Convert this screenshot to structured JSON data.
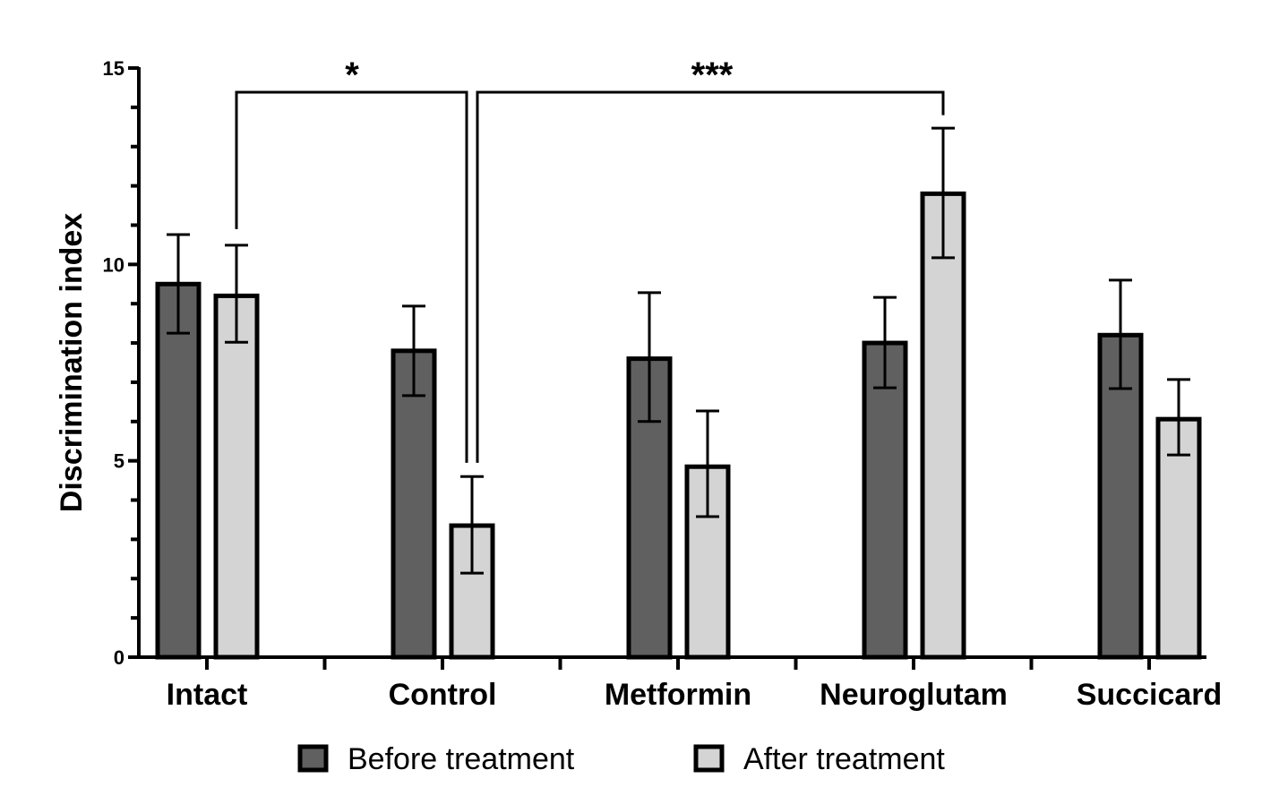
{
  "chart_data": {
    "type": "bar",
    "title": "",
    "xlabel": "",
    "ylabel": "Discrimination index",
    "ylim": [
      0,
      15
    ],
    "yticks": [
      0,
      5,
      10,
      15
    ],
    "yminor_step": 1,
    "grid": false,
    "categories": [
      "Intact",
      "Control",
      "Metformin",
      "Neuroglutam",
      "Succicard"
    ],
    "series": [
      {
        "name": "Before treatment",
        "color": "#606060",
        "values": [
          9.5,
          7.8,
          7.6,
          8.0,
          8.2
        ],
        "error_low": [
          8.25,
          6.66,
          6.0,
          6.86,
          6.84
        ],
        "error_high": [
          10.76,
          8.94,
          9.28,
          9.16,
          9.6
        ]
      },
      {
        "name": "After treatment",
        "color": "#d4d4d4",
        "values": [
          9.2,
          3.35,
          4.85,
          11.8,
          6.06
        ],
        "error_low": [
          8.02,
          2.14,
          3.58,
          10.17,
          5.15
        ],
        "error_high": [
          10.49,
          4.6,
          6.27,
          13.47,
          7.07
        ]
      }
    ],
    "significance": [
      {
        "from": {
          "category": "Intact",
          "series": "After treatment"
        },
        "to": {
          "category": "Control",
          "series": "After treatment"
        },
        "label": "*"
      },
      {
        "from": {
          "category": "Control",
          "series": "After treatment"
        },
        "to": {
          "category": "Neuroglutam",
          "series": "After treatment"
        },
        "label": "***"
      }
    ],
    "legend": {
      "position": "bottom",
      "entries": [
        "Before treatment",
        "After treatment"
      ]
    }
  }
}
